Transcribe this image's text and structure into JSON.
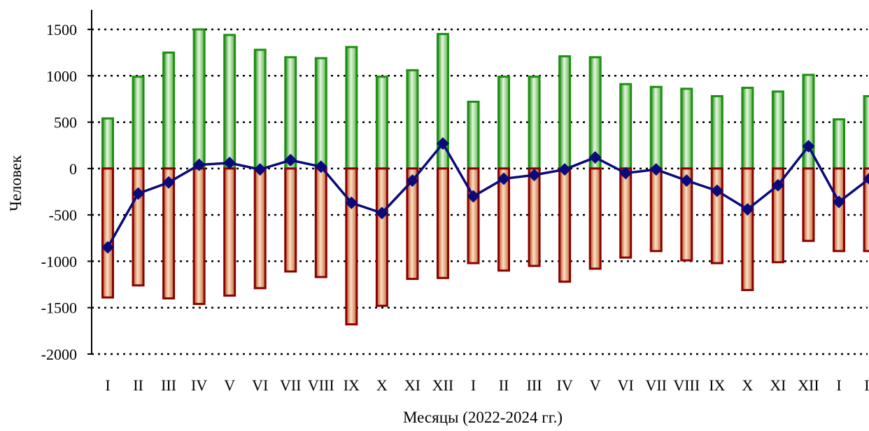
{
  "chart_data": {
    "type": "bar",
    "xlabel": "Месяцы (2022-2024 гг.)",
    "ylabel": "Человек",
    "ylim": [
      -2000,
      1500
    ],
    "yticks": [
      1500,
      1000,
      500,
      0,
      -500,
      -1000,
      -1500,
      -2000
    ],
    "grid": true,
    "categories": [
      "I",
      "II",
      "III",
      "IV",
      "V",
      "VI",
      "VII",
      "VIII",
      "IX",
      "X",
      "XI",
      "XII",
      "I",
      "II",
      "III",
      "IV",
      "V",
      "VI",
      "VII",
      "VIII",
      "IX",
      "X",
      "XI",
      "XII",
      "I",
      "II"
    ],
    "series": [
      {
        "kind": "bar",
        "color": "#1e8f14",
        "values": [
          540,
          990,
          1250,
          1500,
          1440,
          1280,
          1200,
          1190,
          1310,
          990,
          1060,
          1450,
          720,
          990,
          990,
          1210,
          1200,
          910,
          880,
          860,
          780,
          870,
          830,
          1010,
          530,
          780
        ]
      },
      {
        "kind": "bar",
        "color": "#8b0000",
        "values": [
          -1390,
          -1260,
          -1400,
          -1460,
          -1370,
          -1290,
          -1110,
          -1170,
          -1680,
          -1480,
          -1190,
          -1180,
          -1020,
          -1100,
          -1050,
          -1220,
          -1080,
          -960,
          -890,
          -990,
          -1020,
          -1310,
          -1010,
          -780,
          -890,
          -890
        ]
      },
      {
        "kind": "line",
        "color": "#0a0a7a",
        "values": [
          -850,
          -270,
          -150,
          40,
          60,
          -10,
          90,
          20,
          -370,
          -480,
          -130,
          270,
          -300,
          -110,
          -70,
          -10,
          120,
          -50,
          -10,
          -130,
          -240,
          -440,
          -180,
          240,
          -360,
          -110
        ]
      }
    ]
  }
}
